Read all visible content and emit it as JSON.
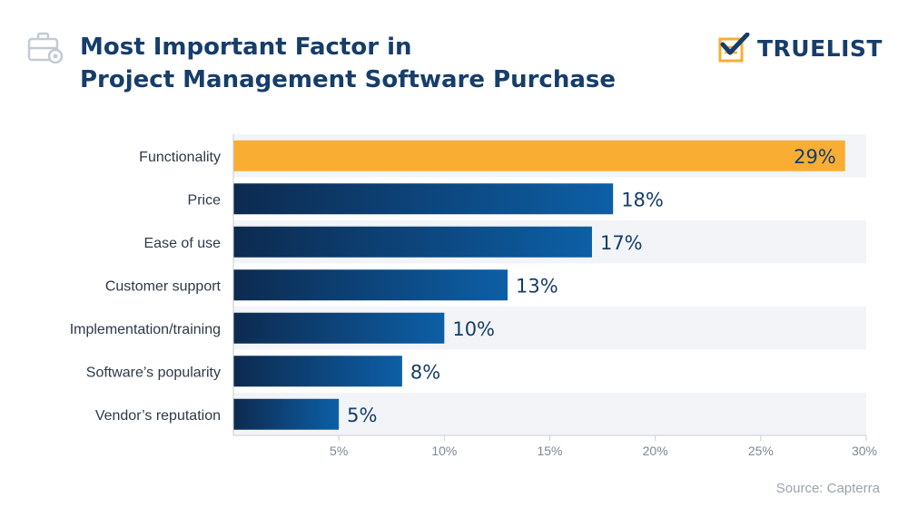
{
  "header": {
    "title_lines": [
      "Most Important Factor in",
      "Project Management Software Purchase"
    ],
    "brand_name": "TRUELIST"
  },
  "source": "Source: Capterra",
  "colors": {
    "highlight_bar": "#f9ae33",
    "bar_gradient_start": "#0d2a4f",
    "bar_gradient_end": "#0d5fa6",
    "row_band": "#f2f4f7",
    "title": "#163d6b",
    "tick_label": "#7d8793"
  },
  "chart_data": {
    "type": "bar",
    "orientation": "horizontal",
    "title": "Most Important Factor in Project Management Software Purchase",
    "categories": [
      "Functionality",
      "Price",
      "Ease of use",
      "Customer support",
      "Implementation/training",
      "Software’s popularity",
      "Vendor’s reputation"
    ],
    "values": [
      29,
      18,
      17,
      13,
      10,
      8,
      5
    ],
    "value_labels": [
      "29%",
      "18%",
      "17%",
      "13%",
      "10%",
      "8%",
      "5%"
    ],
    "highlight_index": 0,
    "xlim": [
      0,
      30
    ],
    "xticks": [
      5,
      10,
      15,
      20,
      25,
      30
    ],
    "xtick_labels": [
      "5%",
      "10%",
      "15%",
      "20%",
      "25%",
      "30%"
    ],
    "xlabel": "",
    "ylabel": "",
    "grid": false,
    "legend": "none"
  }
}
